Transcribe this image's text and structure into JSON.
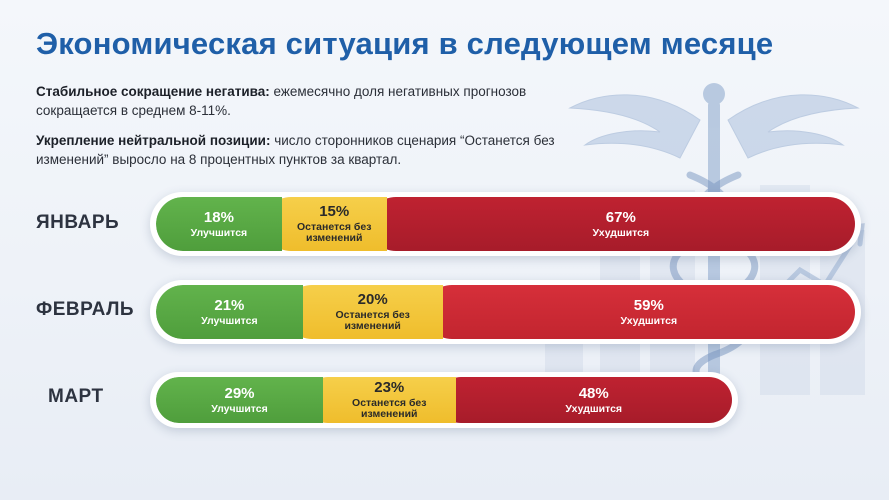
{
  "title": "Экономическая ситуация в следующем месяце",
  "notes": [
    {
      "bold": "Стабильное сокращение негатива:",
      "text": " ежемесячно доля негативных прогнозов сокращается в среднем 8-11%."
    },
    {
      "bold": "Укрепление нейтральной позиции:",
      "text": " число сторонников сценария “Останется без изменений” выросло на 8 процентных пунктов за квартал."
    }
  ],
  "colors": {
    "improve": "#59a845",
    "same": "#f2c43a",
    "worse": "#b51f2d",
    "title": "#1f5fa8"
  },
  "chart_data": {
    "type": "bar",
    "orientation": "horizontal-stacked",
    "categories": [
      "ЯНВАРЬ",
      "ФЕВРАЛЬ",
      "МАРТ"
    ],
    "series": [
      {
        "name": "Улучшится",
        "values": [
          18,
          21,
          29
        ],
        "labels": [
          "18%",
          "21%",
          "29%"
        ]
      },
      {
        "name": "Останется без изменений",
        "values": [
          15,
          20,
          23
        ],
        "labels": [
          "15%",
          "20%",
          "23%"
        ]
      },
      {
        "name": "Ухудшится",
        "values": [
          67,
          59,
          48
        ],
        "labels": [
          "67%",
          "59%",
          "48%"
        ]
      }
    ]
  }
}
